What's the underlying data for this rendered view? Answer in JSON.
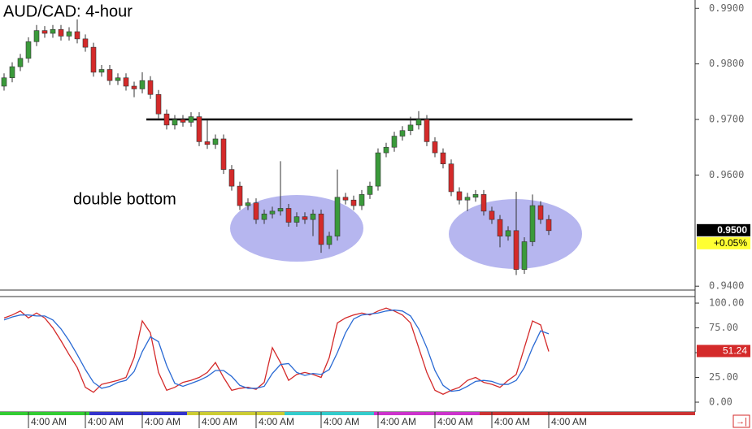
{
  "chart_data": [
    {
      "type": "candlestick",
      "title": "AUD/CAD: 4-hour",
      "annotation": "double bottom",
      "up_color": "#3a9a3a",
      "down_color": "#d42a2a",
      "categories": [
        null,
        null,
        null,
        "4:00 AM",
        null,
        null,
        null,
        null,
        null,
        null,
        "4:00 AM",
        null,
        null,
        null,
        null,
        null,
        null,
        "4:00 AM",
        null,
        null,
        null,
        null,
        null,
        null,
        "4:00 AM",
        null,
        null,
        null,
        null,
        null,
        null,
        "4:00 AM",
        null,
        null,
        null,
        null,
        null,
        null,
        null,
        "4:00 AM",
        null,
        null,
        null,
        null,
        null,
        null,
        "4:00 AM",
        null,
        null,
        null,
        null,
        null,
        null,
        "4:00 AM",
        null,
        null,
        null,
        null,
        null,
        null,
        "4:00 AM",
        null,
        null,
        null,
        null,
        null,
        null,
        "4:00 AM"
      ],
      "open": [
        0.976,
        0.9775,
        0.9795,
        0.981,
        0.984,
        0.986,
        0.9855,
        0.9862,
        0.985,
        0.9858,
        0.9845,
        0.983,
        0.9785,
        0.979,
        0.977,
        0.9775,
        0.976,
        0.9755,
        0.977,
        0.9745,
        0.971,
        0.969,
        0.97,
        0.9695,
        0.9705,
        0.966,
        0.9655,
        0.9665,
        0.961,
        0.958,
        0.9545,
        0.955,
        0.952,
        0.953,
        0.9535,
        0.954,
        0.9515,
        0.9525,
        0.952,
        0.953,
        0.9475,
        0.949,
        0.956,
        0.9555,
        0.9545,
        0.9565,
        0.958,
        0.964,
        0.965,
        0.967,
        0.968,
        0.969,
        0.97,
        0.966,
        0.964,
        0.962,
        0.957,
        0.9555,
        0.956,
        0.9565,
        0.9535,
        0.952,
        0.949,
        0.95,
        0.943,
        0.948,
        0.9545,
        0.952
      ],
      "high": [
        0.9783,
        0.9803,
        0.9818,
        0.9848,
        0.987,
        0.9868,
        0.987,
        0.987,
        0.9866,
        0.988,
        0.9853,
        0.9838,
        0.9798,
        0.9798,
        0.9783,
        0.9783,
        0.9768,
        0.9785,
        0.9778,
        0.9753,
        0.9718,
        0.9708,
        0.9708,
        0.9713,
        0.9713,
        0.97,
        0.9673,
        0.9673,
        0.9618,
        0.9588,
        0.9558,
        0.9558,
        0.9538,
        0.9543,
        0.9625,
        0.9548,
        0.9533,
        0.9533,
        0.9538,
        0.9538,
        0.9498,
        0.961,
        0.9568,
        0.9563,
        0.9573,
        0.9588,
        0.9648,
        0.9658,
        0.9678,
        0.9688,
        0.9705,
        0.9715,
        0.9708,
        0.9668,
        0.9648,
        0.9628,
        0.9578,
        0.9568,
        0.9573,
        0.9573,
        0.9543,
        0.9528,
        0.9508,
        0.957,
        0.9488,
        0.9565,
        0.9553,
        0.9528
      ],
      "low": [
        0.9752,
        0.9767,
        0.9787,
        0.9802,
        0.9832,
        0.9847,
        0.9847,
        0.9842,
        0.9842,
        0.9837,
        0.9822,
        0.9777,
        0.9777,
        0.9762,
        0.9762,
        0.9752,
        0.974,
        0.9747,
        0.9737,
        0.9702,
        0.9682,
        0.9682,
        0.9687,
        0.9687,
        0.9652,
        0.9647,
        0.9647,
        0.9602,
        0.9572,
        0.9537,
        0.9537,
        0.9512,
        0.9512,
        0.9522,
        0.9527,
        0.9507,
        0.9507,
        0.9512,
        0.949,
        0.946,
        0.9467,
        0.9482,
        0.9547,
        0.9537,
        0.9537,
        0.9557,
        0.9572,
        0.9632,
        0.9642,
        0.9662,
        0.9672,
        0.9682,
        0.9652,
        0.9632,
        0.9612,
        0.9562,
        0.9547,
        0.9535,
        0.9552,
        0.9527,
        0.9512,
        0.947,
        0.9482,
        0.942,
        0.9422,
        0.9472,
        0.9512,
        0.9492
      ],
      "close": [
        0.9775,
        0.9795,
        0.981,
        0.984,
        0.986,
        0.9855,
        0.9862,
        0.985,
        0.9858,
        0.9845,
        0.983,
        0.9785,
        0.979,
        0.977,
        0.9775,
        0.976,
        0.9755,
        0.977,
        0.9745,
        0.971,
        0.969,
        0.97,
        0.9695,
        0.9705,
        0.966,
        0.9655,
        0.9665,
        0.961,
        0.958,
        0.9545,
        0.955,
        0.952,
        0.953,
        0.9535,
        0.954,
        0.9515,
        0.9525,
        0.952,
        0.953,
        0.9475,
        0.949,
        0.956,
        0.9555,
        0.9545,
        0.9565,
        0.958,
        0.964,
        0.965,
        0.967,
        0.968,
        0.969,
        0.97,
        0.966,
        0.964,
        0.962,
        0.957,
        0.9555,
        0.956,
        0.9565,
        0.9535,
        0.952,
        0.949,
        0.95,
        0.943,
        0.948,
        0.9545,
        0.952,
        0.95
      ],
      "resistance": 0.97,
      "price_tag": "0.9500",
      "change_tag": "+0.05%",
      "ylim": [
        0.9393,
        0.9915
      ],
      "yticks": [
        {
          "value": 0.99,
          "label": "0.9900"
        },
        {
          "value": 0.98,
          "label": "0.9800"
        },
        {
          "value": 0.97,
          "label": "0.9700"
        },
        {
          "value": 0.96,
          "label": "0.9600"
        },
        {
          "value": 0.94,
          "label": "0.9400"
        }
      ]
    },
    {
      "type": "line",
      "series": [
        {
          "color": "#d42a2a",
          "values": [
            85,
            88,
            92,
            85,
            90,
            85,
            75,
            62,
            48,
            35,
            15,
            10,
            18,
            20,
            22,
            25,
            45,
            82,
            70,
            30,
            12,
            15,
            20,
            22,
            25,
            30,
            40,
            25,
            12,
            14,
            15,
            13,
            20,
            55,
            40,
            22,
            28,
            30,
            28,
            25,
            45,
            80,
            85,
            88,
            90,
            88,
            92,
            95,
            92,
            88,
            80,
            55,
            30,
            12,
            8,
            12,
            15,
            22,
            25,
            20,
            18,
            15,
            22,
            28,
            55,
            82,
            78,
            51.24
          ],
          "value_label": "51.24"
        },
        {
          "color": "#2a6ad4",
          "values": [
            83,
            86,
            88,
            88,
            87,
            87,
            83,
            74,
            62,
            48,
            33,
            20,
            14,
            16,
            20,
            22,
            31,
            51,
            66,
            61,
            37,
            19,
            16,
            19,
            22,
            26,
            32,
            32,
            26,
            17,
            14,
            14,
            16,
            29,
            38,
            39,
            30,
            27,
            29,
            28,
            33,
            50,
            70,
            84,
            88,
            89,
            90,
            92,
            93,
            92,
            87,
            74,
            55,
            32,
            17,
            11,
            12,
            16,
            21,
            22,
            21,
            18,
            18,
            22,
            35,
            55,
            72,
            69
          ]
        }
      ],
      "ylim": [
        -8.2,
        106.6
      ],
      "yticks": [
        {
          "value": 100,
          "label": "100.00"
        },
        {
          "value": 75,
          "label": "75.00"
        },
        {
          "value": 50,
          "label": "50.00"
        },
        {
          "value": 25,
          "label": "25.00"
        },
        {
          "value": 0,
          "label": "0.00"
        }
      ]
    }
  ]
}
